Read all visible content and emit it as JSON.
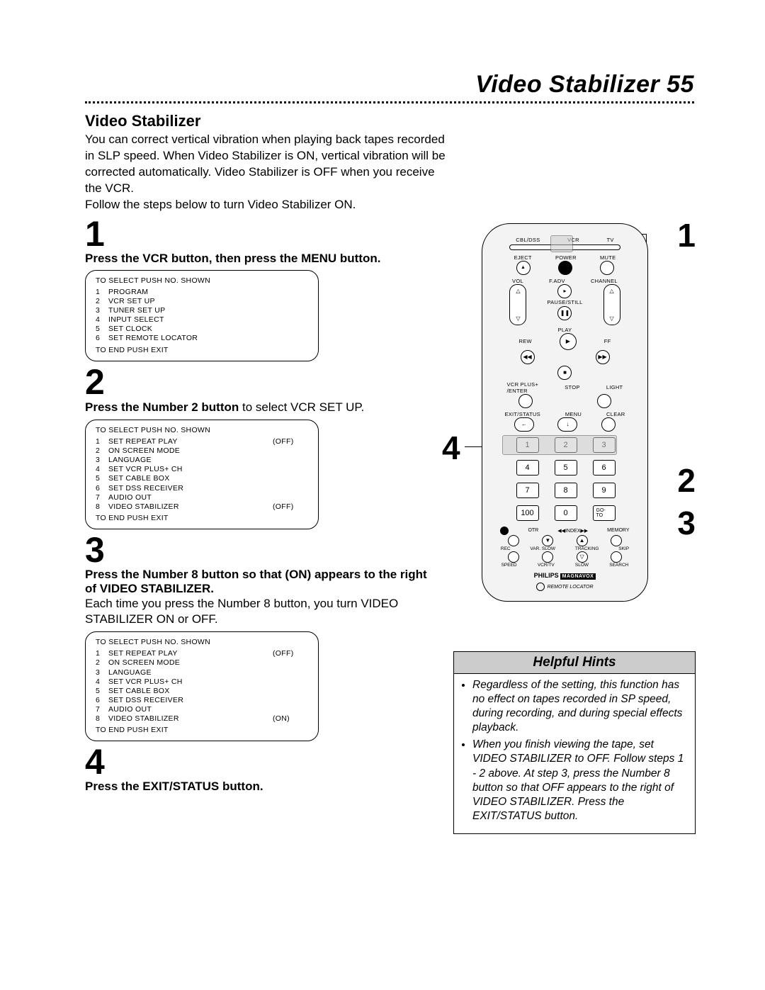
{
  "header": {
    "title": "Video Stabilizer",
    "page_num": "55"
  },
  "section": {
    "title": "Video Stabilizer"
  },
  "intro": {
    "p1": "You can correct vertical vibration when playing back tapes recorded in SLP speed. When Video Stabilizer is ON, vertical vibration will be corrected automatically. Video Stabilizer is OFF when you receive the VCR.",
    "p2": "Follow the steps below to turn Video Stabilizer ON."
  },
  "steps": {
    "s1": {
      "num": "1",
      "bold": "Press the VCR button, then press the MENU button."
    },
    "s2": {
      "num": "2",
      "bold": "Press the Number 2 button",
      "rest": " to select VCR SET UP."
    },
    "s3": {
      "num": "3",
      "bold": "Press the Number 8 button so that (ON) appears to the right of VIDEO STABILIZER.",
      "body": "Each time you press the Number 8 button, you turn VIDEO STABILIZER ON or OFF."
    },
    "s4": {
      "num": "4",
      "bold": "Press the EXIT/STATUS button."
    }
  },
  "menu1": {
    "title": "TO SELECT PUSH NO. SHOWN",
    "rows": [
      {
        "idx": "1",
        "lbl": "PROGRAM"
      },
      {
        "idx": "2",
        "lbl": "VCR SET UP"
      },
      {
        "idx": "3",
        "lbl": "TUNER SET UP"
      },
      {
        "idx": "4",
        "lbl": "INPUT SELECT"
      },
      {
        "idx": "5",
        "lbl": "SET CLOCK"
      },
      {
        "idx": "6",
        "lbl": "SET REMOTE LOCATOR"
      }
    ],
    "footer": "TO END PUSH EXIT"
  },
  "menu2": {
    "title": "TO SELECT PUSH NO. SHOWN",
    "rows": [
      {
        "idx": "1",
        "lbl": "SET REPEAT PLAY",
        "val": "(OFF)"
      },
      {
        "idx": "2",
        "lbl": "ON SCREEN MODE"
      },
      {
        "idx": "3",
        "lbl": "LANGUAGE"
      },
      {
        "idx": "4",
        "lbl": "SET VCR PLUS+ CH"
      },
      {
        "idx": "5",
        "lbl": "SET CABLE BOX"
      },
      {
        "idx": "6",
        "lbl": "SET DSS RECEIVER"
      },
      {
        "idx": "7",
        "lbl": "AUDIO OUT"
      },
      {
        "idx": "8",
        "lbl": "VIDEO STABILIZER",
        "val": "(OFF)"
      }
    ],
    "footer": "TO END PUSH EXIT"
  },
  "menu3": {
    "title": "TO SELECT PUSH NO. SHOWN",
    "rows": [
      {
        "idx": "1",
        "lbl": "SET REPEAT PLAY",
        "val": "(OFF)"
      },
      {
        "idx": "2",
        "lbl": "ON SCREEN MODE"
      },
      {
        "idx": "3",
        "lbl": "LANGUAGE"
      },
      {
        "idx": "4",
        "lbl": "SET VCR PLUS+ CH"
      },
      {
        "idx": "5",
        "lbl": "SET CABLE BOX"
      },
      {
        "idx": "6",
        "lbl": "SET DSS RECEIVER"
      },
      {
        "idx": "7",
        "lbl": "AUDIO OUT"
      },
      {
        "idx": "8",
        "lbl": "VIDEO STABILIZER",
        "val": "(ON)"
      }
    ],
    "footer": "TO END PUSH EXIT"
  },
  "remote": {
    "row_top": [
      "CBL/DSS",
      "VCR",
      "TV"
    ],
    "row2": [
      "EJECT",
      "POWER",
      "MUTE"
    ],
    "vol": "VOL",
    "fadv": "F.ADV",
    "channel": "CHANNEL",
    "pausestill": "PAUSE/STILL",
    "play": "PLAY",
    "rew": "REW",
    "ff": "FF",
    "vcrplus": "VCR PLUS+",
    "enter": "/ENTER",
    "stop": "STOP",
    "light": "LIGHT",
    "exitstatus": "EXIT/STATUS",
    "menu": "MENU",
    "clear": "CLEAR",
    "keypad": [
      "1",
      "2",
      "3",
      "4",
      "5",
      "6",
      "7",
      "8",
      "9",
      "100",
      "0",
      "GO-TO"
    ],
    "rec": "REC",
    "otr": "OTR",
    "index": "INDEX",
    "memory": "MEMORY",
    "varslow": "VAR. SLOW",
    "tracking": "TRACKING",
    "skip": "SKIP",
    "speed": "SPEED",
    "vcrtv": "VCR/TV",
    "slow": "SLOW",
    "search": "SEARCH",
    "brand": "PHILIPS",
    "brand2": "MAGNAVOX",
    "locator": "REMOTE LOCATOR"
  },
  "callouts": {
    "c1": "1",
    "c2": "2",
    "c3": "3",
    "c4": "4"
  },
  "hints": {
    "title": "Helpful Hints",
    "items": [
      "Regardless of the setting, this function has no effect on tapes recorded in SP speed, during recording, and during special effects playback.",
      "When you finish viewing the tape, set VIDEO STABILIZER to OFF. Follow steps 1 - 2 above. At step 3, press the Number 8 button so that OFF appears to the right of VIDEO STABILIZER. Press the EXIT/STATUS button."
    ]
  }
}
